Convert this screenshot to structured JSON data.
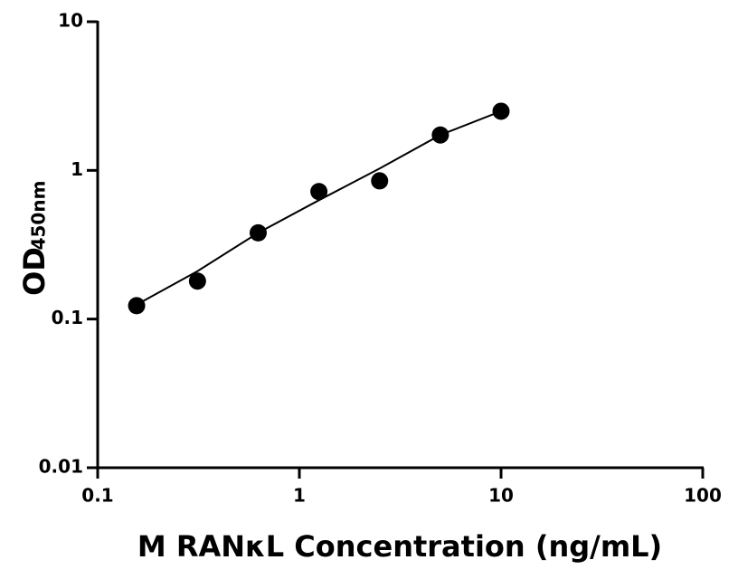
{
  "chart_data": {
    "type": "scatter",
    "x_label": "M RANκL Concentration (ng/mL)",
    "y_label": "OD",
    "y_label_sub": "450nm",
    "x": [
      0.156,
      0.3125,
      0.625,
      1.25,
      2.5,
      5,
      10
    ],
    "values": [
      0.123,
      0.18,
      0.38,
      0.72,
      0.85,
      1.73,
      2.5
    ],
    "color": "#000000",
    "fit_line": {
      "x": [
        0.156,
        0.3125,
        0.625,
        1.25,
        2.5,
        5,
        10
      ],
      "values": [
        0.125,
        0.21,
        0.38,
        0.63,
        1.03,
        1.73,
        2.5
      ]
    },
    "xlim": [
      0.1,
      100
    ],
    "ylim": [
      0.01,
      10
    ],
    "xticks": [
      0.1,
      1,
      10,
      100
    ],
    "yticks": [
      0.01,
      0.1,
      1,
      10
    ],
    "log_x": true,
    "log_y": true,
    "grid": false
  }
}
